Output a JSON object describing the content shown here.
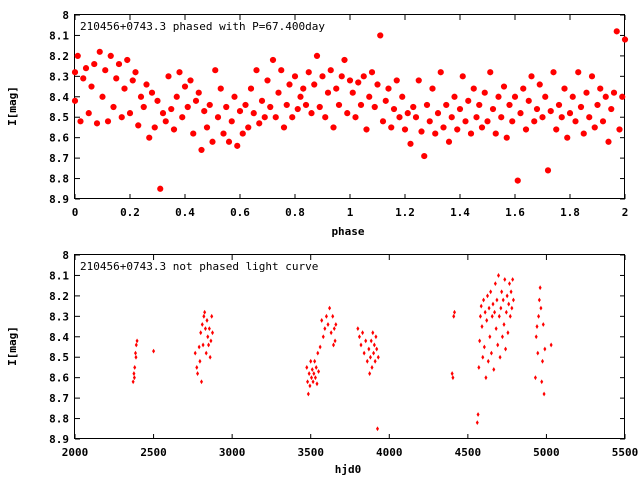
{
  "chart_data": [
    {
      "type": "scatter",
      "title": "210456+0743.3 phased with P=67.400day",
      "xlabel": "phase",
      "ylabel": "I[mag]",
      "xlim": [
        0,
        2
      ],
      "ylim": [
        8.9,
        8
      ],
      "y_inverted": true,
      "xticks": [
        0,
        0.2,
        0.4,
        0.6,
        0.8,
        1,
        1.2,
        1.4,
        1.6,
        1.8,
        2
      ],
      "xtick_labels": [
        "0",
        "0.2",
        "0.4",
        "0.6",
        "0.8",
        "1",
        "1.2",
        "1.4",
        "1.6",
        "1.8",
        "2"
      ],
      "yticks": [
        8,
        8.1,
        8.2,
        8.3,
        8.4,
        8.5,
        8.6,
        8.7,
        8.8,
        8.9
      ],
      "ytick_labels": [
        "8",
        "8.1",
        "8.2",
        "8.3",
        "8.4",
        "8.5",
        "8.6",
        "8.7",
        "8.8",
        "8.9"
      ],
      "grid": false,
      "marker_color": "#ff0000",
      "points": [
        [
          0.0,
          8.28
        ],
        [
          0.0,
          8.42
        ],
        [
          0.01,
          8.2
        ],
        [
          0.02,
          8.52
        ],
        [
          0.03,
          8.31
        ],
        [
          0.04,
          8.26
        ],
        [
          0.05,
          8.48
        ],
        [
          0.06,
          8.35
        ],
        [
          0.07,
          8.24
        ],
        [
          0.08,
          8.53
        ],
        [
          0.09,
          8.18
        ],
        [
          0.1,
          8.4
        ],
        [
          0.11,
          8.27
        ],
        [
          0.12,
          8.52
        ],
        [
          0.13,
          8.2
        ],
        [
          0.14,
          8.45
        ],
        [
          0.15,
          8.31
        ],
        [
          0.16,
          8.24
        ],
        [
          0.17,
          8.5
        ],
        [
          0.18,
          8.36
        ],
        [
          0.19,
          8.22
        ],
        [
          0.2,
          8.48
        ],
        [
          0.21,
          8.32
        ],
        [
          0.22,
          8.28
        ],
        [
          0.23,
          8.54
        ],
        [
          0.24,
          8.4
        ],
        [
          0.25,
          8.45
        ],
        [
          0.26,
          8.34
        ],
        [
          0.27,
          8.6
        ],
        [
          0.28,
          8.38
        ],
        [
          0.29,
          8.55
        ],
        [
          0.3,
          8.42
        ],
        [
          0.31,
          8.85
        ],
        [
          0.32,
          8.48
        ],
        [
          0.33,
          8.52
        ],
        [
          0.34,
          8.3
        ],
        [
          0.35,
          8.46
        ],
        [
          0.36,
          8.56
        ],
        [
          0.37,
          8.4
        ],
        [
          0.38,
          8.28
        ],
        [
          0.39,
          8.5
        ],
        [
          0.4,
          8.35
        ],
        [
          0.41,
          8.45
        ],
        [
          0.42,
          8.32
        ],
        [
          0.43,
          8.58
        ],
        [
          0.44,
          8.42
        ],
        [
          0.45,
          8.38
        ],
        [
          0.46,
          8.66
        ],
        [
          0.47,
          8.47
        ],
        [
          0.48,
          8.55
        ],
        [
          0.49,
          8.44
        ],
        [
          0.5,
          8.62
        ],
        [
          0.51,
          8.27
        ],
        [
          0.52,
          8.5
        ],
        [
          0.53,
          8.36
        ],
        [
          0.54,
          8.58
        ],
        [
          0.55,
          8.45
        ],
        [
          0.56,
          8.62
        ],
        [
          0.57,
          8.52
        ],
        [
          0.58,
          8.4
        ],
        [
          0.59,
          8.64
        ],
        [
          0.6,
          8.47
        ],
        [
          0.61,
          8.58
        ],
        [
          0.62,
          8.44
        ],
        [
          0.63,
          8.55
        ],
        [
          0.64,
          8.36
        ],
        [
          0.65,
          8.48
        ],
        [
          0.66,
          8.27
        ],
        [
          0.67,
          8.53
        ],
        [
          0.68,
          8.42
        ],
        [
          0.69,
          8.5
        ],
        [
          0.7,
          8.32
        ],
        [
          0.71,
          8.45
        ],
        [
          0.72,
          8.22
        ],
        [
          0.73,
          8.5
        ],
        [
          0.74,
          8.38
        ],
        [
          0.75,
          8.27
        ],
        [
          0.76,
          8.55
        ],
        [
          0.77,
          8.44
        ],
        [
          0.78,
          8.34
        ],
        [
          0.79,
          8.5
        ],
        [
          0.8,
          8.3
        ],
        [
          0.81,
          8.46
        ],
        [
          0.82,
          8.4
        ],
        [
          0.83,
          8.36
        ],
        [
          0.84,
          8.44
        ],
        [
          0.85,
          8.28
        ],
        [
          0.86,
          8.48
        ],
        [
          0.87,
          8.34
        ],
        [
          0.88,
          8.2
        ],
        [
          0.89,
          8.45
        ],
        [
          0.9,
          8.3
        ],
        [
          0.91,
          8.5
        ],
        [
          0.92,
          8.38
        ],
        [
          0.93,
          8.27
        ],
        [
          0.94,
          8.55
        ],
        [
          0.95,
          8.36
        ],
        [
          0.96,
          8.44
        ],
        [
          0.97,
          8.3
        ],
        [
          0.98,
          8.22
        ],
        [
          0.99,
          8.48
        ],
        [
          1.0,
          8.32
        ],
        [
          1.01,
          8.38
        ],
        [
          1.02,
          8.5
        ],
        [
          1.03,
          8.33
        ],
        [
          1.04,
          8.44
        ],
        [
          1.05,
          8.3
        ],
        [
          1.06,
          8.56
        ],
        [
          1.07,
          8.4
        ],
        [
          1.08,
          8.28
        ],
        [
          1.09,
          8.45
        ],
        [
          1.1,
          8.34
        ],
        [
          1.11,
          8.1
        ],
        [
          1.12,
          8.52
        ],
        [
          1.13,
          8.42
        ],
        [
          1.14,
          8.36
        ],
        [
          1.15,
          8.55
        ],
        [
          1.16,
          8.46
        ],
        [
          1.17,
          8.32
        ],
        [
          1.18,
          8.5
        ],
        [
          1.19,
          8.4
        ],
        [
          1.2,
          8.56
        ],
        [
          1.21,
          8.48
        ],
        [
          1.22,
          8.63
        ],
        [
          1.23,
          8.45
        ],
        [
          1.24,
          8.5
        ],
        [
          1.25,
          8.32
        ],
        [
          1.26,
          8.57
        ],
        [
          1.27,
          8.69
        ],
        [
          1.28,
          8.44
        ],
        [
          1.29,
          8.52
        ],
        [
          1.3,
          8.36
        ],
        [
          1.31,
          8.58
        ],
        [
          1.32,
          8.48
        ],
        [
          1.33,
          8.28
        ],
        [
          1.34,
          8.55
        ],
        [
          1.35,
          8.44
        ],
        [
          1.36,
          8.62
        ],
        [
          1.37,
          8.5
        ],
        [
          1.38,
          8.4
        ],
        [
          1.39,
          8.56
        ],
        [
          1.4,
          8.46
        ],
        [
          1.41,
          8.3
        ],
        [
          1.42,
          8.52
        ],
        [
          1.43,
          8.42
        ],
        [
          1.44,
          8.58
        ],
        [
          1.45,
          8.36
        ],
        [
          1.46,
          8.5
        ],
        [
          1.47,
          8.44
        ],
        [
          1.48,
          8.55
        ],
        [
          1.49,
          8.38
        ],
        [
          1.5,
          8.52
        ],
        [
          1.51,
          8.28
        ],
        [
          1.52,
          8.46
        ],
        [
          1.53,
          8.58
        ],
        [
          1.54,
          8.4
        ],
        [
          1.55,
          8.5
        ],
        [
          1.56,
          8.35
        ],
        [
          1.57,
          8.6
        ],
        [
          1.58,
          8.44
        ],
        [
          1.59,
          8.52
        ],
        [
          1.6,
          8.4
        ],
        [
          1.61,
          8.81
        ],
        [
          1.62,
          8.48
        ],
        [
          1.63,
          8.36
        ],
        [
          1.64,
          8.56
        ],
        [
          1.65,
          8.42
        ],
        [
          1.66,
          8.3
        ],
        [
          1.67,
          8.52
        ],
        [
          1.68,
          8.46
        ],
        [
          1.69,
          8.34
        ],
        [
          1.7,
          8.5
        ],
        [
          1.71,
          8.4
        ],
        [
          1.72,
          8.76
        ],
        [
          1.73,
          8.47
        ],
        [
          1.74,
          8.28
        ],
        [
          1.75,
          8.56
        ],
        [
          1.76,
          8.44
        ],
        [
          1.77,
          8.5
        ],
        [
          1.78,
          8.36
        ],
        [
          1.79,
          8.6
        ],
        [
          1.8,
          8.48
        ],
        [
          1.81,
          8.4
        ],
        [
          1.82,
          8.52
        ],
        [
          1.83,
          8.28
        ],
        [
          1.84,
          8.45
        ],
        [
          1.85,
          8.58
        ],
        [
          1.86,
          8.38
        ],
        [
          1.87,
          8.5
        ],
        [
          1.88,
          8.3
        ],
        [
          1.89,
          8.55
        ],
        [
          1.9,
          8.44
        ],
        [
          1.91,
          8.36
        ],
        [
          1.92,
          8.52
        ],
        [
          1.93,
          8.4
        ],
        [
          1.94,
          8.62
        ],
        [
          1.95,
          8.46
        ],
        [
          1.96,
          8.38
        ],
        [
          1.97,
          8.08
        ],
        [
          1.98,
          8.56
        ],
        [
          1.99,
          8.4
        ],
        [
          2.0,
          8.12
        ]
      ]
    },
    {
      "type": "scatter",
      "title": "210456+0743.3 not phased light curve",
      "xlabel": "hjd0",
      "ylabel": "I[mag]",
      "xlim": [
        2000,
        5500
      ],
      "ylim": [
        8.9,
        8
      ],
      "y_inverted": true,
      "xticks": [
        2000,
        2500,
        3000,
        3500,
        4000,
        4500,
        5000,
        5500
      ],
      "xtick_labels": [
        "2000",
        "2500",
        "3000",
        "3500",
        "4000",
        "4500",
        "5000",
        "5500"
      ],
      "yticks": [
        8,
        8.1,
        8.2,
        8.3,
        8.4,
        8.5,
        8.6,
        8.7,
        8.8,
        8.9
      ],
      "ytick_labels": [
        "8",
        "8.1",
        "8.2",
        "8.3",
        "8.4",
        "8.5",
        "8.6",
        "8.7",
        "8.8",
        "8.9"
      ],
      "grid": false,
      "marker_color": "#ff0000",
      "points": [
        [
          2370,
          8.62
        ],
        [
          2375,
          8.58
        ],
        [
          2380,
          8.55
        ],
        [
          2385,
          8.48
        ],
        [
          2390,
          8.44
        ],
        [
          2395,
          8.42
        ],
        [
          2378,
          8.6
        ],
        [
          2388,
          8.5
        ],
        [
          2500,
          8.47
        ],
        [
          2765,
          8.48
        ],
        [
          2775,
          8.55
        ],
        [
          2780,
          8.58
        ],
        [
          2790,
          8.45
        ],
        [
          2795,
          8.52
        ],
        [
          2800,
          8.38
        ],
        [
          2805,
          8.62
        ],
        [
          2810,
          8.34
        ],
        [
          2815,
          8.44
        ],
        [
          2820,
          8.3
        ],
        [
          2825,
          8.28
        ],
        [
          2830,
          8.36
        ],
        [
          2835,
          8.48
        ],
        [
          2840,
          8.32
        ],
        [
          2845,
          8.4
        ],
        [
          2850,
          8.44
        ],
        [
          2855,
          8.36
        ],
        [
          2860,
          8.5
        ],
        [
          2865,
          8.42
        ],
        [
          2870,
          8.3
        ],
        [
          2875,
          8.38
        ],
        [
          3475,
          8.55
        ],
        [
          3480,
          8.62
        ],
        [
          3485,
          8.68
        ],
        [
          3490,
          8.58
        ],
        [
          3495,
          8.64
        ],
        [
          3500,
          8.52
        ],
        [
          3505,
          8.6
        ],
        [
          3510,
          8.56
        ],
        [
          3515,
          8.62
        ],
        [
          3520,
          8.58
        ],
        [
          3525,
          8.52
        ],
        [
          3530,
          8.6
        ],
        [
          3535,
          8.55
        ],
        [
          3540,
          8.63
        ],
        [
          3545,
          8.48
        ],
        [
          3550,
          8.57
        ],
        [
          3560,
          8.45
        ],
        [
          3570,
          8.32
        ],
        [
          3580,
          8.4
        ],
        [
          3590,
          8.36
        ],
        [
          3600,
          8.3
        ],
        [
          3610,
          8.34
        ],
        [
          3620,
          8.26
        ],
        [
          3630,
          8.38
        ],
        [
          3640,
          8.3
        ],
        [
          3645,
          8.44
        ],
        [
          3650,
          8.36
        ],
        [
          3655,
          8.42
        ],
        [
          3660,
          8.34
        ],
        [
          3800,
          8.36
        ],
        [
          3810,
          8.4
        ],
        [
          3820,
          8.44
        ],
        [
          3830,
          8.38
        ],
        [
          3840,
          8.48
        ],
        [
          3850,
          8.42
        ],
        [
          3860,
          8.52
        ],
        [
          3870,
          8.46
        ],
        [
          3875,
          8.58
        ],
        [
          3880,
          8.5
        ],
        [
          3885,
          8.42
        ],
        [
          3890,
          8.55
        ],
        [
          3895,
          8.38
        ],
        [
          3900,
          8.48
        ],
        [
          3905,
          8.44
        ],
        [
          3910,
          8.52
        ],
        [
          3915,
          8.4
        ],
        [
          3920,
          8.46
        ],
        [
          3925,
          8.85
        ],
        [
          3930,
          8.5
        ],
        [
          4400,
          8.58
        ],
        [
          4405,
          8.6
        ],
        [
          4410,
          8.3
        ],
        [
          4415,
          8.28
        ],
        [
          4560,
          8.82
        ],
        [
          4565,
          8.78
        ],
        [
          4570,
          8.55
        ],
        [
          4575,
          8.42
        ],
        [
          4580,
          8.3
        ],
        [
          4585,
          8.25
        ],
        [
          4590,
          8.35
        ],
        [
          4595,
          8.5
        ],
        [
          4600,
          8.22
        ],
        [
          4605,
          8.45
        ],
        [
          4610,
          8.28
        ],
        [
          4615,
          8.6
        ],
        [
          4620,
          8.32
        ],
        [
          4625,
          8.2
        ],
        [
          4630,
          8.52
        ],
        [
          4635,
          8.26
        ],
        [
          4640,
          8.4
        ],
        [
          4645,
          8.18
        ],
        [
          4650,
          8.48
        ],
        [
          4655,
          8.3
        ],
        [
          4660,
          8.24
        ],
        [
          4665,
          8.56
        ],
        [
          4670,
          8.28
        ],
        [
          4675,
          8.14
        ],
        [
          4680,
          8.36
        ],
        [
          4685,
          8.22
        ],
        [
          4690,
          8.44
        ],
        [
          4695,
          8.1
        ],
        [
          4700,
          8.3
        ],
        [
          4705,
          8.5
        ],
        [
          4710,
          8.26
        ],
        [
          4715,
          8.18
        ],
        [
          4720,
          8.4
        ],
        [
          4725,
          8.22
        ],
        [
          4730,
          8.34
        ],
        [
          4735,
          8.12
        ],
        [
          4740,
          8.46
        ],
        [
          4745,
          8.28
        ],
        [
          4750,
          8.2
        ],
        [
          4755,
          8.38
        ],
        [
          4760,
          8.24
        ],
        [
          4765,
          8.14
        ],
        [
          4770,
          8.3
        ],
        [
          4775,
          8.18
        ],
        [
          4780,
          8.26
        ],
        [
          4785,
          8.12
        ],
        [
          4790,
          8.22
        ],
        [
          4930,
          8.6
        ],
        [
          4935,
          8.4
        ],
        [
          4940,
          8.35
        ],
        [
          4945,
          8.48
        ],
        [
          4950,
          8.3
        ],
        [
          4955,
          8.22
        ],
        [
          4960,
          8.16
        ],
        [
          4965,
          8.26
        ],
        [
          4970,
          8.62
        ],
        [
          4975,
          8.52
        ],
        [
          4980,
          8.34
        ],
        [
          4985,
          8.68
        ],
        [
          4990,
          8.46
        ],
        [
          5030,
          8.44
        ]
      ]
    }
  ]
}
